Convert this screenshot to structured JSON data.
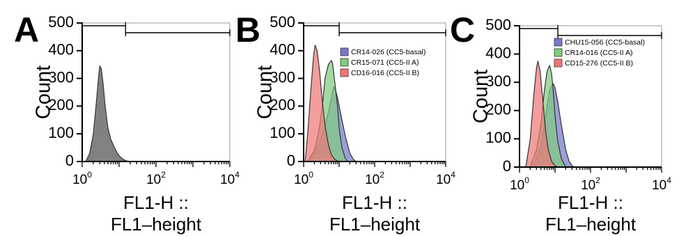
{
  "chart_data": [
    {
      "panel": "A",
      "type": "area",
      "xlabel_line1": "FL1-H ::",
      "xlabel_line2": "FL1–height",
      "ylabel": "Count",
      "x_scale": "log",
      "xlim": [
        1,
        10000
      ],
      "ylim": [
        0,
        500
      ],
      "yticks": [
        0,
        100,
        200,
        300,
        400,
        500
      ],
      "xticks": [
        {
          "base": "10",
          "exp": "0",
          "value": 1
        },
        {
          "base": "10",
          "exp": "2",
          "value": 100
        },
        {
          "base": "10",
          "exp": "4",
          "value": 10000
        }
      ],
      "gates": [
        {
          "from": 1,
          "to": 15
        },
        {
          "from": 15,
          "to": 10000
        }
      ],
      "series": [
        {
          "name": "",
          "color": "#7a7a7a",
          "x": [
            1.25,
            1.6,
            2.0,
            2.4,
            2.8,
            3.0,
            3.3,
            3.7,
            4.2,
            5.0,
            6.0,
            7.5,
            9.0,
            11,
            14,
            18
          ],
          "y": [
            0,
            30,
            100,
            210,
            310,
            345,
            335,
            280,
            200,
            120,
            80,
            50,
            30,
            15,
            5,
            0
          ]
        }
      ]
    },
    {
      "panel": "B",
      "type": "area",
      "xlabel_line1": "FL1-H ::",
      "xlabel_line2": "FL1–height",
      "ylabel": "Count",
      "x_scale": "log",
      "xlim": [
        1,
        10000
      ],
      "ylim": [
        0,
        500
      ],
      "yticks": [
        0,
        100,
        200,
        300,
        400,
        500
      ],
      "xticks": [
        {
          "base": "10",
          "exp": "0",
          "value": 1
        },
        {
          "base": "10",
          "exp": "2",
          "value": 100
        },
        {
          "base": "10",
          "exp": "4",
          "value": 10000
        }
      ],
      "gates": [
        {
          "from": 1,
          "to": 10
        },
        {
          "from": 10,
          "to": 10000
        }
      ],
      "series": [
        {
          "name": "CR14-026 (CC5-basal)",
          "color": "#7777cc",
          "x": [
            1.4,
            2.0,
            3.0,
            4.0,
            5.0,
            6.0,
            7.0,
            8.0,
            9.0,
            10,
            12,
            15,
            20,
            25,
            30
          ],
          "y": [
            0,
            30,
            80,
            130,
            180,
            230,
            270,
            255,
            230,
            200,
            150,
            90,
            30,
            8,
            0
          ]
        },
        {
          "name": "CR15-071 (CC5-II A)",
          "color": "#7fcc7f",
          "x": [
            1.3,
            2.0,
            2.5,
            3.0,
            3.5,
            4.0,
            5.0,
            6.0,
            6.5,
            7.5,
            9.0,
            10,
            12,
            15,
            18
          ],
          "y": [
            0,
            40,
            90,
            150,
            220,
            300,
            350,
            365,
            355,
            290,
            200,
            120,
            50,
            10,
            0
          ]
        },
        {
          "name": "CD16-016 (CC5-II B)",
          "color": "#ee7777",
          "x": [
            1.1,
            1.3,
            1.6,
            1.9,
            2.1,
            2.4,
            2.8,
            3.3,
            4.0,
            5.0,
            6.0,
            7.5,
            9.0,
            11
          ],
          "y": [
            0,
            100,
            260,
            380,
            420,
            400,
            330,
            230,
            130,
            60,
            25,
            8,
            2,
            0
          ]
        }
      ],
      "legend_position": "top-right"
    },
    {
      "panel": "C",
      "type": "area",
      "xlabel_line1": "FL1-H ::",
      "xlabel_line2": "FL1–height",
      "ylabel": "Count",
      "x_scale": "log",
      "xlim": [
        1,
        10000
      ],
      "ylim": [
        0,
        500
      ],
      "yticks": [
        0,
        100,
        200,
        300,
        400,
        500
      ],
      "xticks": [
        {
          "base": "10",
          "exp": "0",
          "value": 1
        },
        {
          "base": "10",
          "exp": "2",
          "value": 100
        },
        {
          "base": "10",
          "exp": "4",
          "value": 10000
        }
      ],
      "gates": [
        {
          "from": 1,
          "to": 12
        },
        {
          "from": 12,
          "to": 10000
        }
      ],
      "series": [
        {
          "name": "CHU15-056 (CC5-basal)",
          "color": "#7777cc",
          "x": [
            2.2,
            3.0,
            4.0,
            5.0,
            6.0,
            7.0,
            8.0,
            9.0,
            10,
            12,
            15,
            20,
            25,
            30,
            35
          ],
          "y": [
            0,
            30,
            80,
            150,
            220,
            270,
            290,
            295,
            280,
            230,
            150,
            60,
            20,
            5,
            0
          ]
        },
        {
          "name": "CR14-016 (CC5-II A)",
          "color": "#7fcc7f",
          "x": [
            2.0,
            3.0,
            4.0,
            5.0,
            6.0,
            7.0,
            8.0,
            9.0,
            10,
            12,
            15,
            20
          ],
          "y": [
            0,
            60,
            150,
            270,
            340,
            360,
            330,
            260,
            180,
            90,
            30,
            0
          ]
        },
        {
          "name": "CD15-276 (CC5-II B)",
          "color": "#ee7777",
          "x": [
            1.5,
            2.0,
            2.5,
            3.0,
            3.3,
            3.8,
            4.5,
            5.5,
            6.5,
            8.0,
            10,
            12
          ],
          "y": [
            0,
            100,
            250,
            350,
            375,
            340,
            240,
            120,
            60,
            20,
            5,
            0
          ]
        }
      ],
      "legend_position": "top-right"
    }
  ]
}
